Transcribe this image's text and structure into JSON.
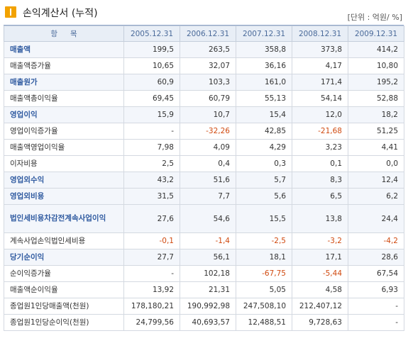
{
  "header": {
    "title": "손익계산서 (누적)",
    "unit": "[단위 : 억원/ %]"
  },
  "table": {
    "col_label": "항목",
    "years": [
      "2005.12.31",
      "2006.12.31",
      "2007.12.31",
      "2008.12.31",
      "2009.12.31"
    ],
    "rows": [
      {
        "label": "매출액",
        "hl": true,
        "values": [
          "199,5",
          "263,5",
          "358,8",
          "373,8",
          "414,2"
        ]
      },
      {
        "label": "매출액증가율",
        "hl": false,
        "values": [
          "10,65",
          "32,07",
          "36,16",
          "4,17",
          "10,80"
        ]
      },
      {
        "label": "매출원가",
        "hl": true,
        "values": [
          "60,9",
          "103,3",
          "161,0",
          "171,4",
          "195,2"
        ]
      },
      {
        "label": "매출액총이익율",
        "hl": false,
        "values": [
          "69,45",
          "60,79",
          "55,13",
          "54,14",
          "52,88"
        ]
      },
      {
        "label": "영업이익",
        "hl": true,
        "values": [
          "15,9",
          "10,7",
          "15,4",
          "12,0",
          "18,2"
        ]
      },
      {
        "label": "영업이익증가율",
        "hl": false,
        "values": [
          "-",
          "-32,26",
          "42,85",
          "-21,68",
          "51,25"
        ]
      },
      {
        "label": "매출액영업이익율",
        "hl": false,
        "values": [
          "7,98",
          "4,09",
          "4,29",
          "3,23",
          "4,41"
        ]
      },
      {
        "label": "이자비용",
        "hl": false,
        "values": [
          "2,5",
          "0,4",
          "0,3",
          "0,1",
          "0,0"
        ]
      },
      {
        "label": "영업외수익",
        "hl": true,
        "values": [
          "43,2",
          "51,6",
          "5,7",
          "8,3",
          "12,4"
        ]
      },
      {
        "label": "영업외비용",
        "hl": true,
        "values": [
          "31,5",
          "7,7",
          "5,6",
          "6,5",
          "6,2"
        ]
      },
      {
        "label": "법인세비용차감전계속사업이익",
        "hl": true,
        "tall": true,
        "values": [
          "27,6",
          "54,6",
          "15,5",
          "13,8",
          "24,4"
        ]
      },
      {
        "label": "계속사업손익법인세비용",
        "hl": false,
        "values": [
          "-0,1",
          "-1,4",
          "-2,5",
          "-3,2",
          "-4,2"
        ]
      },
      {
        "label": "당기순이익",
        "hl": true,
        "values": [
          "27,7",
          "56,1",
          "18,1",
          "17,1",
          "28,6"
        ]
      },
      {
        "label": "순이익증가율",
        "hl": false,
        "values": [
          "-",
          "102,18",
          "-67,75",
          "-5,44",
          "67,54"
        ]
      },
      {
        "label": "매출액순이익율",
        "hl": false,
        "values": [
          "13,92",
          "21,31",
          "5,05",
          "4,58",
          "6,93"
        ]
      },
      {
        "label": "종업원1인당매출액(천원)",
        "hl": false,
        "values": [
          "178,180,21",
          "190,992,98",
          "247,508,10",
          "212,407,12",
          "-"
        ]
      },
      {
        "label": "종업원1인당순이익(천원)",
        "hl": false,
        "values": [
          "24,799,56",
          "40,693,57",
          "12,488,51",
          "9,728,63",
          "-"
        ]
      }
    ]
  },
  "colors": {
    "negative": "#d04a10",
    "highlight_label": "#2f5aa0",
    "header_bg": "#e8eef6",
    "icon": "#f2a200"
  }
}
